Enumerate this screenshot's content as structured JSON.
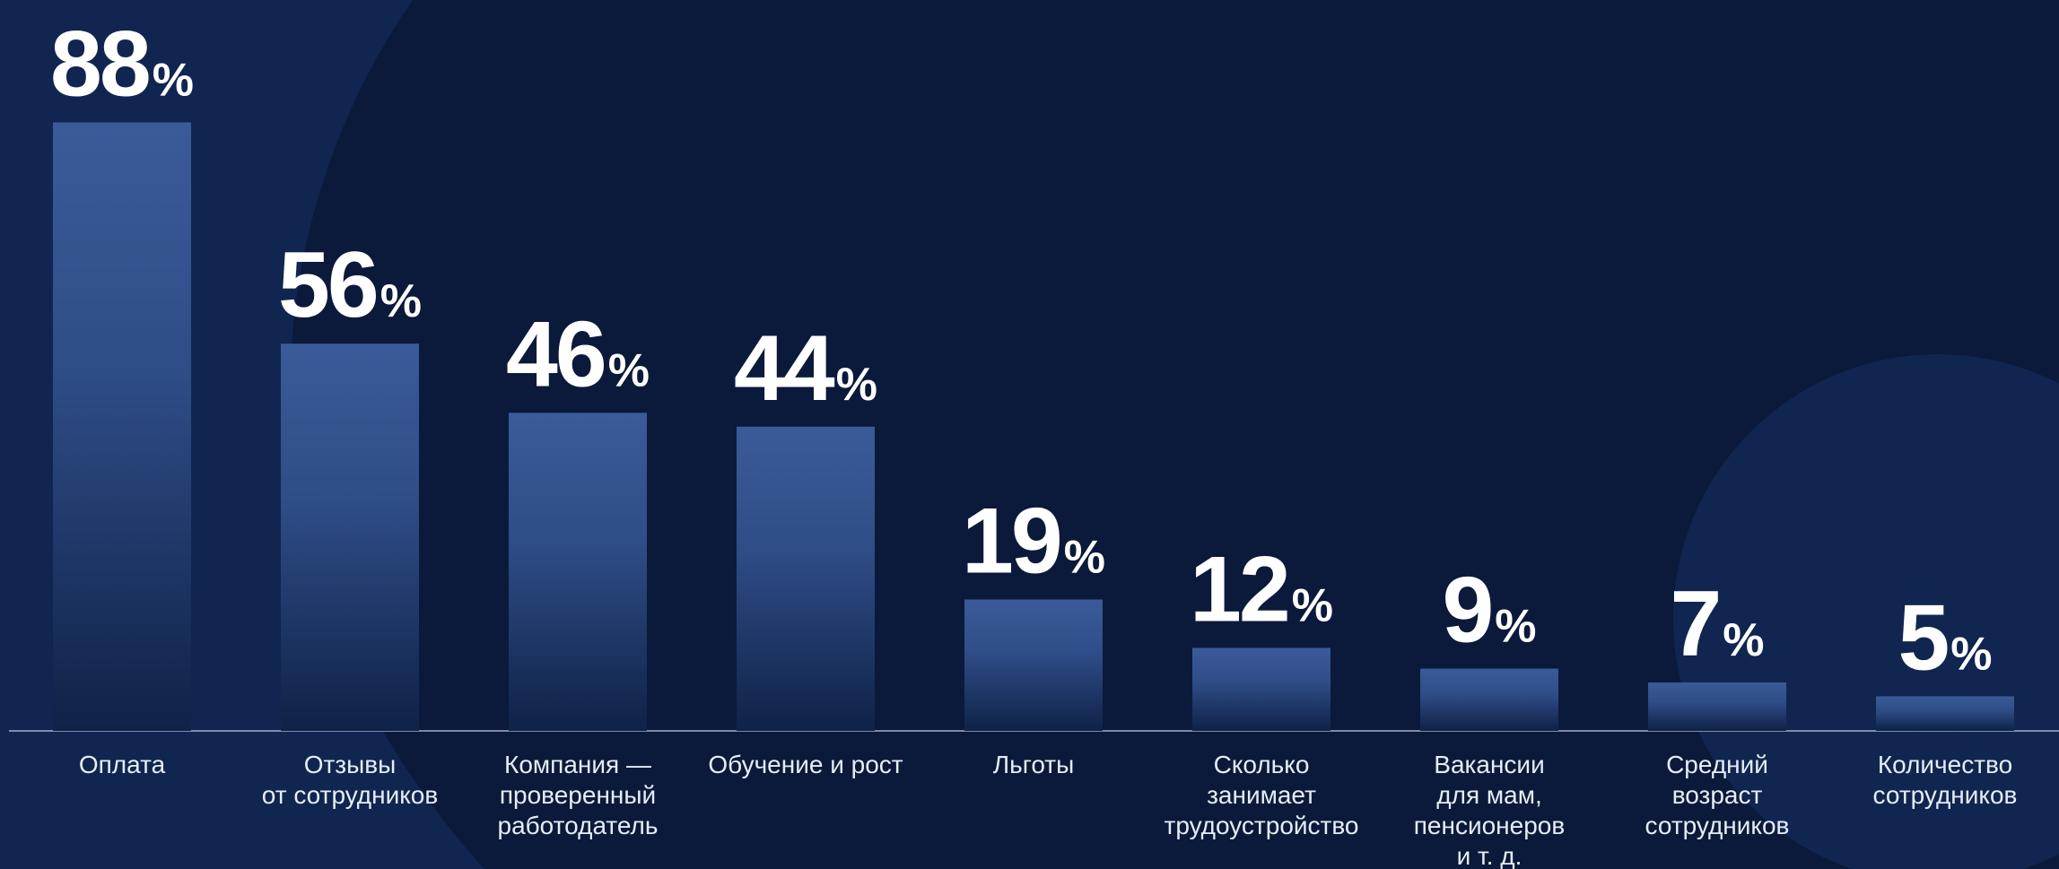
{
  "colors": {
    "background": "#0b1a3a",
    "background_shape": "#102650",
    "bar_top": "#3a5b99",
    "bar_bottom": "#0f2247",
    "axis": "#9fb0cc",
    "text": "#ffffff",
    "label_text": "#e6ecf6"
  },
  "chart_data": {
    "type": "bar",
    "title": "",
    "xlabel": "",
    "ylabel": "",
    "ylim": [
      0,
      100
    ],
    "value_suffix": "%",
    "grid": false,
    "categories": [
      [
        "Оплата"
      ],
      [
        "Отзывы",
        "от сотрудников"
      ],
      [
        "Компания —",
        "проверенный",
        "работодатель"
      ],
      [
        "Обучение и рост"
      ],
      [
        "Льготы"
      ],
      [
        "Сколько",
        "занимает",
        "трудоустройство"
      ],
      [
        "Вакансии",
        "для мам,",
        "пенсионеров",
        "и т. д."
      ],
      [
        "Средний",
        "возраст",
        "сотрудников"
      ],
      [
        "Количество",
        "сотрудников"
      ]
    ],
    "values": [
      88,
      56,
      46,
      44,
      19,
      12,
      9,
      7,
      5
    ]
  }
}
